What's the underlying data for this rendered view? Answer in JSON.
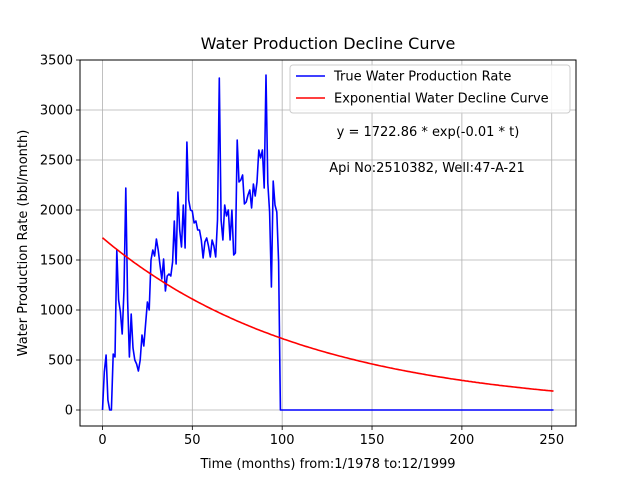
{
  "chart_data": {
    "type": "line",
    "title": "Water Production Decline Curve",
    "xlabel": "Time (months) from:1/1978 to:12/1999",
    "ylabel": "Water Production Rate (bbl/month)",
    "xlim": [
      -12.5,
      263.5
    ],
    "ylim": [
      -160,
      3500
    ],
    "xticks": [
      0,
      50,
      100,
      150,
      200,
      250
    ],
    "yticks": [
      0,
      500,
      1000,
      1500,
      2000,
      2500,
      3000,
      3500
    ],
    "grid": true,
    "legend_position": "top-right",
    "annotations": [
      "y = 1722.86 * exp(-0.01 * t)",
      "Api No:2510382, Well:47-A-21"
    ],
    "series": [
      {
        "name": "True Water Production Rate",
        "color": "#0000ff",
        "x": [
          0,
          1,
          2,
          3,
          4,
          5,
          6,
          7,
          8,
          9,
          10,
          11,
          12,
          13,
          14,
          15,
          16,
          17,
          18,
          19,
          20,
          21,
          22,
          23,
          24,
          25,
          26,
          27,
          28,
          29,
          30,
          31,
          32,
          33,
          34,
          35,
          36,
          37,
          38,
          39,
          40,
          41,
          42,
          43,
          44,
          45,
          46,
          47,
          48,
          49,
          50,
          51,
          52,
          53,
          54,
          55,
          56,
          57,
          58,
          59,
          60,
          61,
          62,
          63,
          64,
          65,
          66,
          67,
          68,
          69,
          70,
          71,
          72,
          73,
          74,
          75,
          76,
          77,
          78,
          79,
          80,
          81,
          82,
          83,
          84,
          85,
          86,
          87,
          88,
          89,
          90,
          91,
          92,
          93,
          94,
          95,
          96,
          97,
          98,
          99,
          100,
          101,
          150,
          200,
          251
        ],
        "values": [
          0,
          380,
          550,
          100,
          0,
          0,
          560,
          530,
          1600,
          1100,
          980,
          760,
          1200,
          2220,
          1100,
          530,
          960,
          620,
          500,
          460,
          390,
          500,
          750,
          640,
          860,
          1080,
          1000,
          1500,
          1600,
          1540,
          1710,
          1600,
          1450,
          1310,
          1510,
          1190,
          1340,
          1360,
          1340,
          1480,
          1890,
          1460,
          2180,
          1800,
          1630,
          2050,
          1620,
          2680,
          2100,
          2000,
          1990,
          1870,
          1890,
          1800,
          1800,
          1700,
          1520,
          1680,
          1720,
          1640,
          1530,
          1700,
          1640,
          1530,
          1900,
          3320,
          1900,
          1700,
          2050,
          1940,
          2000,
          1700,
          2000,
          1550,
          1570,
          2700,
          2280,
          2300,
          2350,
          2060,
          2080,
          2150,
          2200,
          2020,
          2260,
          2140,
          2280,
          2600,
          2520,
          2600,
          2220,
          3350,
          2270,
          1980,
          1230,
          2290,
          2050,
          1980,
          1480,
          0,
          0,
          0,
          0,
          0,
          0
        ]
      },
      {
        "name": "Exponential Water Decline Curve",
        "color": "#ff0000",
        "model": {
          "a": 1722.86,
          "b": -0.0088
        },
        "x_range": [
          0,
          251
        ]
      }
    ]
  }
}
